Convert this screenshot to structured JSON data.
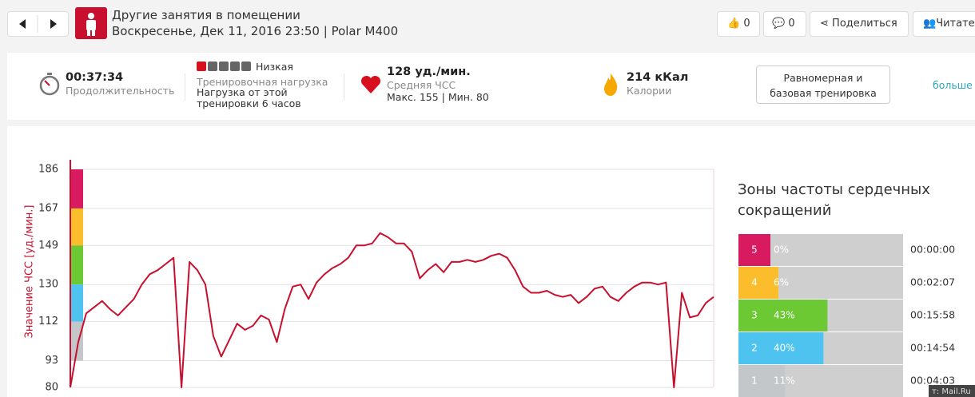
{
  "header": {
    "title": "Другие занятия в помещении",
    "subtitle": "Воскресенье, Дек 11, 2016 23:50 | Polar M400",
    "likes": 0,
    "comments": 0,
    "share": "Поделиться",
    "follow": "Читате"
  },
  "summary": {
    "duration": "00:37:34",
    "duration_label": "Продолжительность",
    "load_level": "Низкая",
    "load_label": "Тренировочная нагрузка",
    "load_note": "Нагрузка от этой тренировки 6 часов",
    "avg_hr": "128 уд./мин.",
    "avg_hr_label": "Средняя ЧСС",
    "hr_range": "Макс. 155 | Мин. 80",
    "calories": "214 кКал",
    "calories_label": "Калории",
    "benefit": "Равномерная и базовая тренировка",
    "more": "больше"
  },
  "chart": {
    "type": "line",
    "y_label": "Значение ЧСС [уд./мин.]",
    "color": "#c8102e",
    "grid": true,
    "ylim": [
      80,
      186
    ],
    "yticks": [
      80,
      93,
      112,
      130,
      149,
      167,
      186
    ],
    "values": [
      80,
      102,
      116,
      119,
      122,
      118,
      115,
      119,
      123,
      130,
      135,
      137,
      140,
      143,
      80,
      141,
      137,
      130,
      105,
      95,
      103,
      111,
      108,
      110,
      115,
      113,
      102,
      118,
      129,
      130,
      123,
      131,
      135,
      138,
      140,
      143,
      149,
      149,
      150,
      155,
      153,
      150,
      150,
      146,
      133,
      137,
      140,
      136,
      141,
      141,
      142,
      141,
      142,
      144,
      145,
      143,
      137,
      129,
      126,
      126,
      127,
      125,
      124,
      125,
      121,
      124,
      128,
      129,
      124,
      122,
      126,
      129,
      131,
      131,
      130,
      131,
      80,
      126,
      114,
      115,
      121,
      124
    ]
  },
  "zones": {
    "title": "Зоны частоты сердечных сокращений",
    "rows": [
      {
        "zone": 5,
        "color": "#d81b60",
        "percent": 0,
        "percent_label": "0%",
        "time": "00:00:00"
      },
      {
        "zone": 4,
        "color": "#fbbd2c",
        "percent": 6,
        "percent_label": "6%",
        "time": "00:02:07"
      },
      {
        "zone": 3,
        "color": "#6cc934",
        "percent": 43,
        "percent_label": "43%",
        "time": "00:15:58"
      },
      {
        "zone": 2,
        "color": "#4fc3f0",
        "percent": 40,
        "percent_label": "40%",
        "time": "00:14:54"
      },
      {
        "zone": 1,
        "color": "#c4c7c9",
        "percent": 11,
        "percent_label": "11%",
        "time": "00:04:03"
      }
    ]
  },
  "watermark": "т: Mail.Ru"
}
